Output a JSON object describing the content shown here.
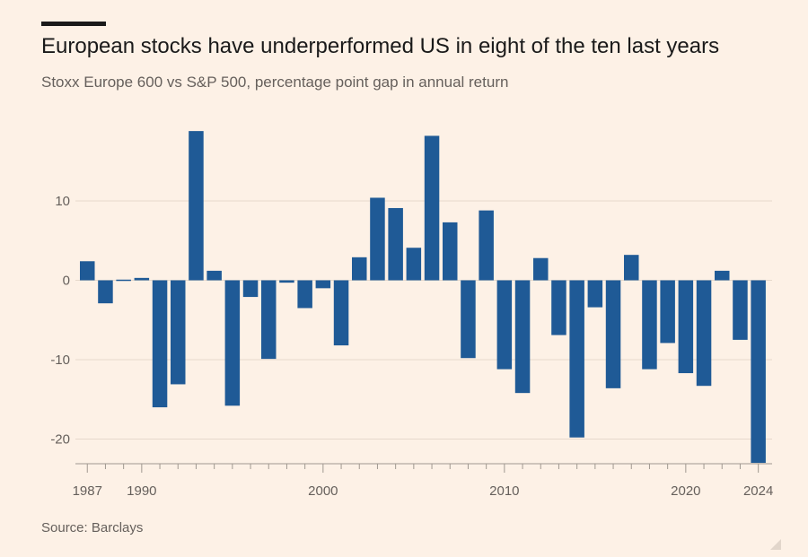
{
  "title": "European stocks have underperformed US in eight of the ten last years",
  "subtitle": "Stoxx Europe 600 vs S&P 500, percentage point gap in annual return",
  "source": "Source: Barclays",
  "colors": {
    "bar": "#1f5a96",
    "grid": "#e6d9cc",
    "axis": "#a09890",
    "text": "#66605c",
    "background": "#fdf1e6"
  },
  "chart_data": {
    "type": "bar",
    "title": "European stocks have underperformed US in eight of the ten last years",
    "subtitle": "Stoxx Europe 600 vs S&P 500, percentage point gap in annual return",
    "xlabel": "",
    "ylabel": "",
    "categories": [
      1987,
      1988,
      1989,
      1990,
      1991,
      1992,
      1993,
      1994,
      1995,
      1996,
      1997,
      1998,
      1999,
      2000,
      2001,
      2002,
      2003,
      2004,
      2005,
      2006,
      2007,
      2008,
      2009,
      2010,
      2011,
      2012,
      2013,
      2014,
      2015,
      2016,
      2017,
      2018,
      2019,
      2020,
      2021,
      2022,
      2023,
      2024
    ],
    "values": [
      2.4,
      -2.9,
      -0.1,
      0.3,
      -16,
      -13.1,
      18.8,
      1.2,
      -15.8,
      -2.1,
      -9.9,
      -0.3,
      -3.5,
      -1,
      -8.2,
      2.9,
      10.4,
      9.1,
      4.1,
      18.2,
      7.3,
      -9.8,
      8.8,
      -11.2,
      -14.2,
      2.8,
      -6.9,
      -19.8,
      -3.4,
      -13.6,
      3.2,
      -11.2,
      -7.9,
      -11.7,
      -13.3,
      1.2,
      -7.5,
      -23
    ],
    "yticks": [
      10,
      0,
      -10,
      -20
    ],
    "xtick_labels": [
      "1987",
      "1990",
      "2000",
      "2010",
      "2020",
      "2024"
    ],
    "ylim": [
      -23,
      19
    ],
    "grid": true
  }
}
